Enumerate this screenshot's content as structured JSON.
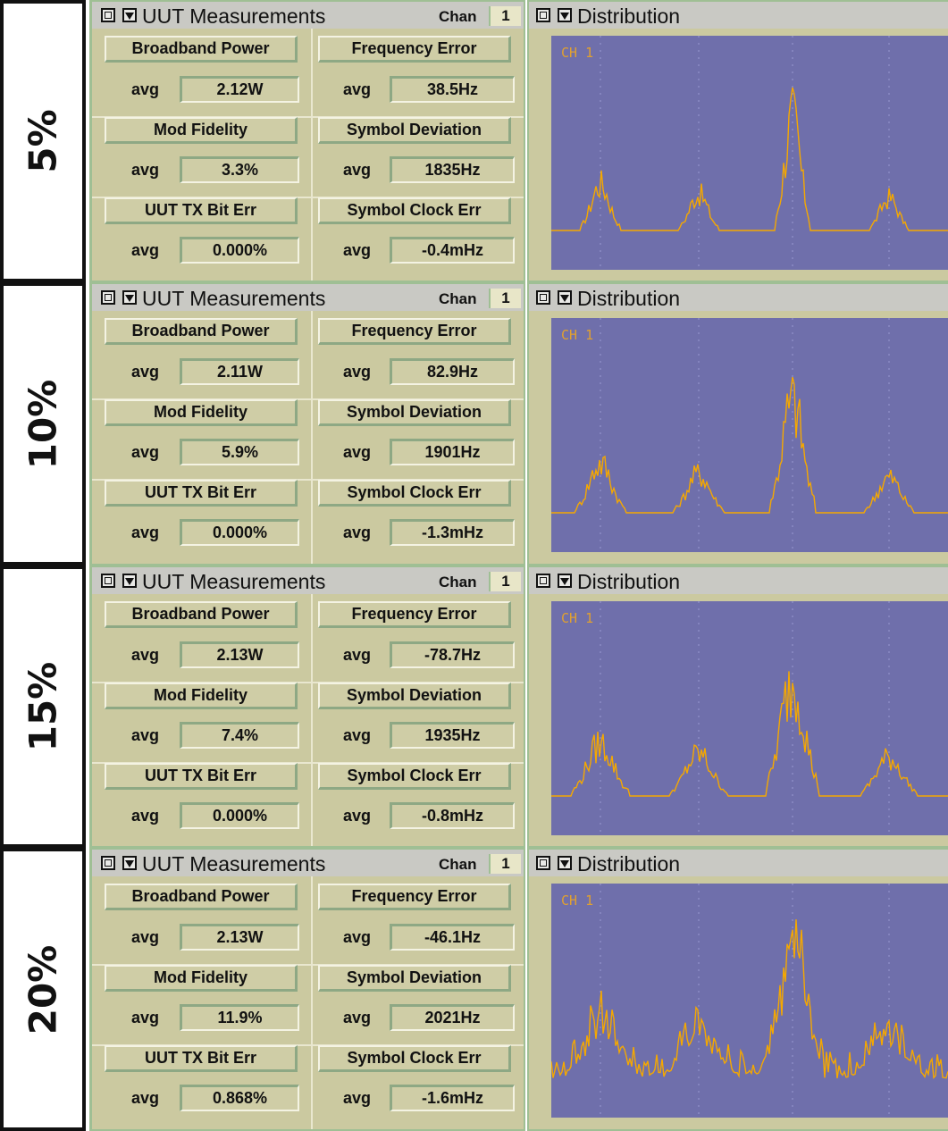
{
  "panels": [
    {
      "level": "5%",
      "uut": {
        "title": "UUT Measurements",
        "chan_label": "Chan",
        "chan_value": "1",
        "rows": [
          {
            "left": {
              "button": "Broadband Power",
              "avg": "avg",
              "value": "2.12W"
            },
            "right": {
              "button": "Frequency Error",
              "avg": "avg",
              "value": "38.5Hz"
            }
          },
          {
            "left": {
              "button": "Mod Fidelity",
              "avg": "avg",
              "value": "3.3%"
            },
            "right": {
              "button": "Symbol Deviation",
              "avg": "avg",
              "value": "1835Hz"
            }
          },
          {
            "left": {
              "button": "UUT TX Bit Err",
              "avg": "avg",
              "value": "0.000%"
            },
            "right": {
              "button": "Symbol Clock Err",
              "avg": "avg",
              "value": "-0.4mHz"
            }
          }
        ]
      },
      "distribution": {
        "title": "Distribution",
        "channel": "CH 1",
        "noise": 0.2
      }
    },
    {
      "level": "10%",
      "uut": {
        "title": "UUT Measurements",
        "chan_label": "Chan",
        "chan_value": "1",
        "rows": [
          {
            "left": {
              "button": "Broadband Power",
              "avg": "avg",
              "value": "2.11W"
            },
            "right": {
              "button": "Frequency Error",
              "avg": "avg",
              "value": "82.9Hz"
            }
          },
          {
            "left": {
              "button": "Mod Fidelity",
              "avg": "avg",
              "value": "5.9%"
            },
            "right": {
              "button": "Symbol Deviation",
              "avg": "avg",
              "value": "1901Hz"
            }
          },
          {
            "left": {
              "button": "UUT TX Bit Err",
              "avg": "avg",
              "value": "0.000%"
            },
            "right": {
              "button": "Symbol Clock Err",
              "avg": "avg",
              "value": "-1.3mHz"
            }
          }
        ]
      },
      "distribution": {
        "title": "Distribution",
        "channel": "CH 1",
        "noise": 0.45
      }
    },
    {
      "level": "15%",
      "uut": {
        "title": "UUT Measurements",
        "chan_label": "Chan",
        "chan_value": "1",
        "rows": [
          {
            "left": {
              "button": "Broadband Power",
              "avg": "avg",
              "value": "2.13W"
            },
            "right": {
              "button": "Frequency Error",
              "avg": "avg",
              "value": "-78.7Hz"
            }
          },
          {
            "left": {
              "button": "Mod Fidelity",
              "avg": "avg",
              "value": "7.4%"
            },
            "right": {
              "button": "Symbol Deviation",
              "avg": "avg",
              "value": "1935Hz"
            }
          },
          {
            "left": {
              "button": "UUT TX Bit Err",
              "avg": "avg",
              "value": "0.000%"
            },
            "right": {
              "button": "Symbol Clock Err",
              "avg": "avg",
              "value": "-0.8mHz"
            }
          }
        ]
      },
      "distribution": {
        "title": "Distribution",
        "channel": "CH 1",
        "noise": 0.65
      }
    },
    {
      "level": "20%",
      "uut": {
        "title": "UUT Measurements",
        "chan_label": "Chan",
        "chan_value": "1",
        "rows": [
          {
            "left": {
              "button": "Broadband Power",
              "avg": "avg",
              "value": "2.13W"
            },
            "right": {
              "button": "Frequency Error",
              "avg": "avg",
              "value": "-46.1Hz"
            }
          },
          {
            "left": {
              "button": "Mod Fidelity",
              "avg": "avg",
              "value": "11.9%"
            },
            "right": {
              "button": "Symbol Deviation",
              "avg": "avg",
              "value": "2021Hz"
            }
          },
          {
            "left": {
              "button": "UUT TX Bit Err",
              "avg": "avg",
              "value": "0.868%"
            },
            "right": {
              "button": "Symbol Clock Err",
              "avg": "avg",
              "value": "-1.6mHz"
            }
          }
        ]
      },
      "distribution": {
        "title": "Distribution",
        "channel": "CH 1",
        "noise": 0.9
      }
    }
  ],
  "colors": {
    "trace": "#f5a800",
    "plot_bg": "#6f6fab",
    "panel_bg": "#cbc9a0"
  }
}
